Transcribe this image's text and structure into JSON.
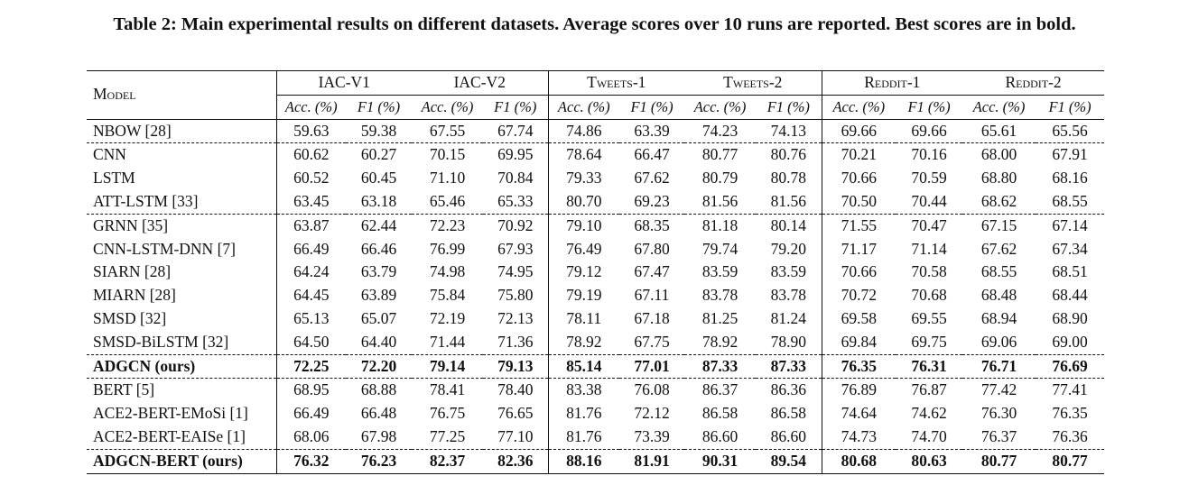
{
  "caption": "Table 2: Main experimental results on different datasets. Average scores over 10 runs are reported. Best scores are in bold.",
  "table": {
    "model_header": "Model",
    "datasets": [
      "IAC-V1",
      "IAC-V2",
      "Tweets-1",
      "Tweets-2",
      "Reddit-1",
      "Reddit-2"
    ],
    "metrics": [
      "Acc. (%)",
      "F1 (%)",
      "Acc. (%)",
      "F1 (%)",
      "Acc. (%)",
      "F1 (%)",
      "Acc. (%)",
      "F1 (%)",
      "Acc. (%)",
      "F1 (%)",
      "Acc. (%)",
      "F1 (%)"
    ],
    "rows": [
      {
        "model": "NBOW [28]",
        "values": [
          "59.63",
          "59.38",
          "67.55",
          "67.74",
          "74.86",
          "63.39",
          "74.23",
          "74.13",
          "69.66",
          "69.66",
          "65.61",
          "65.56"
        ]
      },
      {
        "model": "CNN",
        "values": [
          "60.62",
          "60.27",
          "70.15",
          "69.95",
          "78.64",
          "66.47",
          "80.77",
          "80.76",
          "70.21",
          "70.16",
          "68.00",
          "67.91"
        ]
      },
      {
        "model": "LSTM",
        "values": [
          "60.52",
          "60.45",
          "71.10",
          "70.84",
          "79.33",
          "67.62",
          "80.79",
          "80.78",
          "70.66",
          "70.59",
          "68.80",
          "68.16"
        ]
      },
      {
        "model": "ATT-LSTM [33]",
        "values": [
          "63.45",
          "63.18",
          "65.46",
          "65.33",
          "80.70",
          "69.23",
          "81.56",
          "81.56",
          "70.50",
          "70.44",
          "68.62",
          "68.55"
        ]
      },
      {
        "model": "GRNN [35]",
        "values": [
          "63.87",
          "62.44",
          "72.23",
          "70.92",
          "79.10",
          "68.35",
          "81.18",
          "80.14",
          "71.55",
          "70.47",
          "67.15",
          "67.14"
        ]
      },
      {
        "model": "CNN-LSTM-DNN [7]",
        "values": [
          "66.49",
          "66.46",
          "76.99",
          "67.93",
          "76.49",
          "67.80",
          "79.74",
          "79.20",
          "71.17",
          "71.14",
          "67.62",
          "67.34"
        ]
      },
      {
        "model": "SIARN [28]",
        "values": [
          "64.24",
          "63.79",
          "74.98",
          "74.95",
          "79.12",
          "67.47",
          "83.59",
          "83.59",
          "70.66",
          "70.58",
          "68.55",
          "68.51"
        ]
      },
      {
        "model": "MIARN [28]",
        "values": [
          "64.45",
          "63.89",
          "75.84",
          "75.80",
          "79.19",
          "67.11",
          "83.78",
          "83.78",
          "70.72",
          "70.68",
          "68.48",
          "68.44"
        ]
      },
      {
        "model": "SMSD [32]",
        "values": [
          "65.13",
          "65.07",
          "72.19",
          "72.13",
          "78.11",
          "67.18",
          "81.25",
          "81.24",
          "69.58",
          "69.55",
          "68.94",
          "68.90"
        ]
      },
      {
        "model": "SMSD-BiLSTM [32]",
        "values": [
          "64.50",
          "64.40",
          "71.44",
          "71.36",
          "78.92",
          "67.75",
          "78.92",
          "78.90",
          "69.84",
          "69.75",
          "69.06",
          "69.00"
        ]
      },
      {
        "model": "ADGCN (ours)",
        "values": [
          "72.25",
          "72.20",
          "79.14",
          "79.13",
          "85.14",
          "77.01",
          "87.33",
          "87.33",
          "76.35",
          "76.31",
          "76.71",
          "76.69"
        ]
      },
      {
        "model": "BERT [5]",
        "values": [
          "68.95",
          "68.88",
          "78.41",
          "78.40",
          "83.38",
          "76.08",
          "86.37",
          "86.36",
          "76.89",
          "76.87",
          "77.42",
          "77.41"
        ]
      },
      {
        "model": "ACE2-BERT-EMoSi [1]",
        "values": [
          "66.49",
          "66.48",
          "76.75",
          "76.65",
          "81.76",
          "72.12",
          "86.58",
          "86.58",
          "74.64",
          "74.62",
          "76.30",
          "76.35"
        ]
      },
      {
        "model": "ACE2-BERT-EAISe [1]",
        "values": [
          "68.06",
          "67.98",
          "77.25",
          "77.10",
          "81.76",
          "73.39",
          "86.60",
          "86.60",
          "74.73",
          "74.70",
          "76.37",
          "76.36"
        ]
      },
      {
        "model": "ADGCN-BERT (ours)",
        "values": [
          "76.32",
          "76.23",
          "82.37",
          "82.36",
          "88.16",
          "81.91",
          "90.31",
          "89.54",
          "80.68",
          "80.63",
          "80.77",
          "80.77"
        ]
      }
    ]
  }
}
